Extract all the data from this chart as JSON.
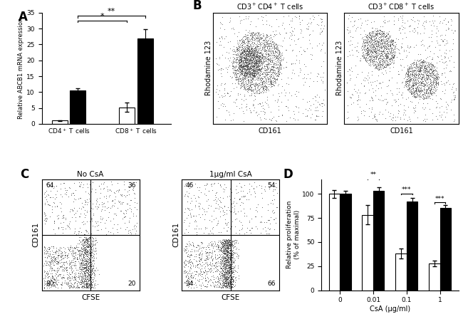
{
  "panel_A": {
    "groups": [
      "CD4$^+$ T cells",
      "CD8$^+$ T cells"
    ],
    "bar1_values": [
      1.0,
      5.2
    ],
    "bar1_errors": [
      0.15,
      1.4
    ],
    "bar2_values": [
      10.5,
      27.0
    ],
    "bar2_errors": [
      0.7,
      2.8
    ],
    "bar1_color": "white",
    "bar2_color": "black",
    "ylabel": "Relative ABCB1 mRNA expression",
    "ylim": [
      0,
      35
    ],
    "yticks": [
      0,
      5,
      10,
      15,
      20,
      25,
      30,
      35
    ]
  },
  "panel_B_left": {
    "title": "CD3$^+$CD4$^+$ T cells",
    "xlabel": "CD161",
    "ylabel": "Rhodamine 123"
  },
  "panel_B_right": {
    "title": "CD3$^+$CD8$^+$ T cells",
    "xlabel": "CD161",
    "ylabel": "Rhodamine 123"
  },
  "panel_C_left": {
    "title": "No CsA",
    "xlabel": "CFSE",
    "ylabel": "CD161",
    "quadrant_labels": [
      "64",
      "36",
      "80",
      "20"
    ]
  },
  "panel_C_right": {
    "title": "1μg/ml CsA",
    "xlabel": "CFSE",
    "ylabel": "CD161",
    "quadrant_labels": [
      "46",
      "54",
      "34",
      "66"
    ]
  },
  "panel_D": {
    "x_labels": [
      "0",
      "0.01",
      "0.1",
      "1"
    ],
    "white_values": [
      100,
      78,
      38,
      28
    ],
    "white_errors": [
      4,
      10,
      5,
      3
    ],
    "black_values": [
      100,
      103,
      92,
      85
    ],
    "black_errors": [
      3,
      4,
      4,
      3
    ],
    "ylabel": "Relative proliferation\n(% of maximal)",
    "ylim": [
      0,
      115
    ],
    "yticks": [
      0,
      25,
      50,
      75,
      100
    ],
    "xlabel": "CsA (μg/ml)",
    "sig_labels": [
      "**",
      "***",
      "***"
    ]
  }
}
